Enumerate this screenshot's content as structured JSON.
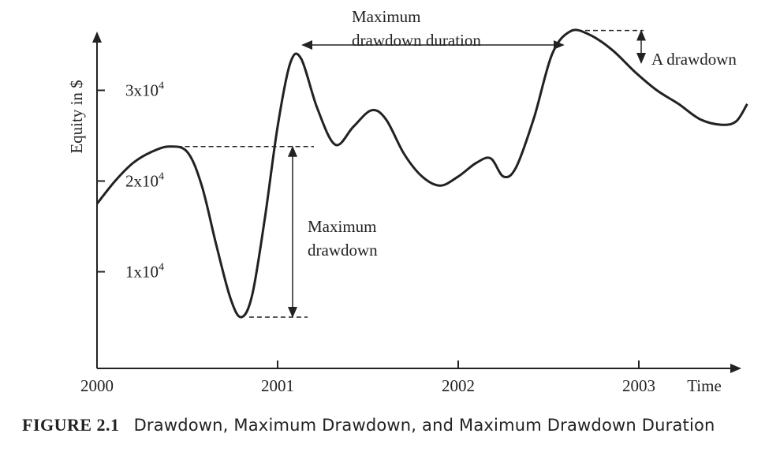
{
  "chart_data": {
    "type": "line",
    "ylabel": "Equity in $",
    "xlabel": "Time",
    "x_ticks": [
      {
        "value": 2000,
        "label": "2000"
      },
      {
        "value": 2001,
        "label": "2001"
      },
      {
        "value": 2002,
        "label": "2002"
      },
      {
        "value": 2003,
        "label": "2003"
      }
    ],
    "y_ticks": [
      {
        "value": 10000,
        "base": "1x10",
        "exp": "4"
      },
      {
        "value": 20000,
        "base": "2x10",
        "exp": "4"
      },
      {
        "value": 30000,
        "base": "3x10",
        "exp": "4"
      }
    ],
    "xlim": [
      2000,
      2003.6
    ],
    "ylim": [
      -1000,
      38000
    ],
    "series": [
      {
        "points": [
          [
            2000.0,
            17500
          ],
          [
            2000.1,
            20000
          ],
          [
            2000.2,
            22000
          ],
          [
            2000.3,
            23200
          ],
          [
            2000.4,
            23800
          ],
          [
            2000.5,
            23200
          ],
          [
            2000.58,
            19500
          ],
          [
            2000.66,
            13000
          ],
          [
            2000.74,
            7000
          ],
          [
            2000.8,
            5000
          ],
          [
            2000.86,
            7500
          ],
          [
            2000.93,
            16000
          ],
          [
            2001.0,
            26000
          ],
          [
            2001.07,
            33000
          ],
          [
            2001.13,
            33500
          ],
          [
            2001.22,
            28000
          ],
          [
            2001.32,
            24000
          ],
          [
            2001.42,
            26000
          ],
          [
            2001.52,
            27800
          ],
          [
            2001.6,
            26800
          ],
          [
            2001.7,
            23000
          ],
          [
            2001.8,
            20500
          ],
          [
            2001.9,
            19500
          ],
          [
            2002.0,
            20500
          ],
          [
            2002.1,
            22000
          ],
          [
            2002.18,
            22500
          ],
          [
            2002.25,
            20500
          ],
          [
            2002.32,
            21500
          ],
          [
            2002.42,
            27000
          ],
          [
            2002.52,
            34000
          ],
          [
            2002.62,
            36500
          ],
          [
            2002.72,
            36200
          ],
          [
            2002.85,
            34500
          ],
          [
            2002.98,
            32000
          ],
          [
            2003.1,
            30000
          ],
          [
            2003.22,
            28500
          ],
          [
            2003.34,
            26800
          ],
          [
            2003.46,
            26200
          ],
          [
            2003.54,
            26600
          ],
          [
            2003.6,
            28500
          ]
        ]
      }
    ],
    "grid": false,
    "legend": "none",
    "annotations": {
      "max_drawdown": {
        "label": [
          "Maximum",
          "drawdown"
        ],
        "peak": [
          2000.4,
          23800
        ],
        "trough": [
          2000.86,
          5000
        ]
      },
      "max_drawdown_duration": {
        "label": [
          "Maximum",
          "drawdown duration"
        ],
        "start": 2001.14,
        "end": 2002.58,
        "y": 35000
      },
      "a_drawdown": {
        "label": "A drawdown",
        "peak": [
          2002.65,
          36600
        ],
        "trough": [
          2003.08,
          33000
        ]
      }
    }
  },
  "caption": {
    "figure": "FIGURE 2.1",
    "text": "Drawdown, Maximum Drawdown, and Maximum Drawdown Duration"
  },
  "colors": {
    "ink": "#222222",
    "background": "#ffffff"
  }
}
